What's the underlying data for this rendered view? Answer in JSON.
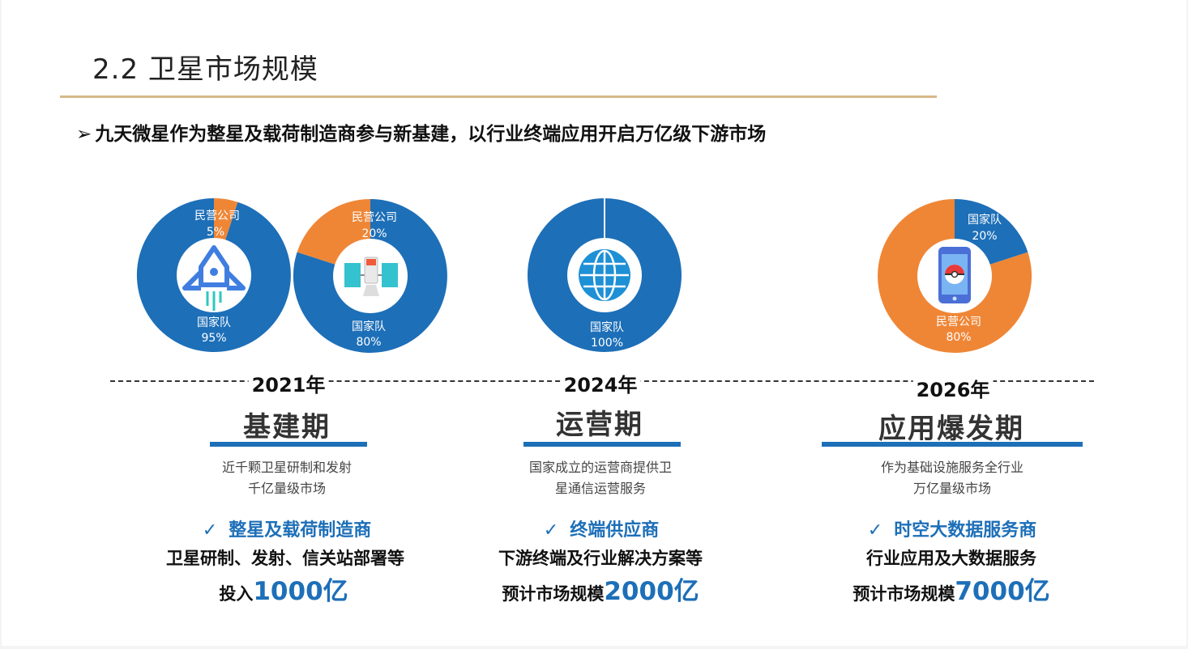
{
  "title": "2.2 卫星市场规模",
  "subtitle": {
    "arrow": "➢",
    "text": "九天微星作为整星及载荷制造商参与新基建，以行业终端应用开启万亿级下游市场"
  },
  "colors": {
    "blue": "#1d6fb8",
    "orange": "#ef8636",
    "gold": "#d8b98a"
  },
  "donuts": [
    {
      "icon": "rocket-icon",
      "slices": [
        {
          "label": "民营公司",
          "pct": "5%",
          "value": 5,
          "color": "#ef8636"
        },
        {
          "label": "国家队",
          "pct": "95%",
          "value": 95,
          "color": "#1d6fb8"
        }
      ]
    },
    {
      "icon": "satellite-icon",
      "slices": [
        {
          "label": "民营公司",
          "pct": "20%",
          "value": 20,
          "color": "#ef8636"
        },
        {
          "label": "国家队",
          "pct": "80%",
          "value": 80,
          "color": "#1d6fb8"
        }
      ]
    },
    {
      "icon": "globe-icon",
      "slices": [
        {
          "label": "国家队",
          "pct": "100%",
          "value": 100,
          "color": "#1d6fb8"
        }
      ]
    },
    {
      "icon": "smartphone-icon",
      "slices": [
        {
          "label": "国家队",
          "pct": "20%",
          "value": 20,
          "color": "#1d6fb8"
        },
        {
          "label": "民营公司",
          "pct": "80%",
          "value": 80,
          "color": "#ef8636"
        }
      ]
    }
  ],
  "phases": [
    {
      "year": "2021年",
      "name": "基建期",
      "desc1": "近千颗卫星研制和发射",
      "desc2": "千亿量级市场",
      "check": "✓",
      "role": "整星及载荷制造商",
      "work": "卫星研制、发射、信关站部署等",
      "market_prefix": "投入",
      "market_amount": "1000亿"
    },
    {
      "year": "2024年",
      "name": "运营期",
      "desc1": "国家成立的运营商提供卫",
      "desc2": "星通信运营服务",
      "check": "✓",
      "role": "终端供应商",
      "work": "下游终端及行业解决方案等",
      "market_prefix": "预计市场规模",
      "market_amount": "2000亿"
    },
    {
      "year": "2026年",
      "name": "应用爆发期",
      "desc1": "作为基础设施服务全行业",
      "desc2": "万亿量级市场",
      "check": "✓",
      "role": "时空大数据服务商",
      "work": "行业应用及大数据服务",
      "market_prefix": "预计市场规模",
      "market_amount": "7000亿"
    }
  ]
}
